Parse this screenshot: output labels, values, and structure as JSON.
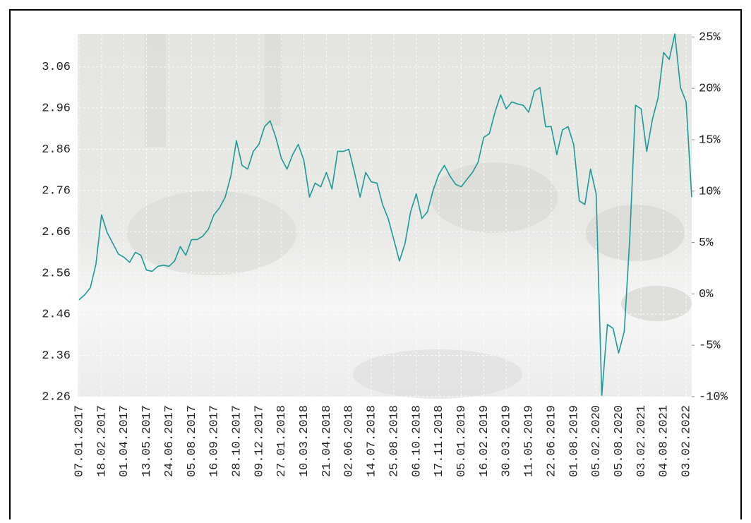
{
  "chart_data": {
    "type": "line",
    "categories": [
      "07.01.2017",
      null,
      null,
      null,
      "18.02.2017",
      null,
      null,
      null,
      "01.04.2017",
      null,
      null,
      null,
      "13.05.2017",
      null,
      null,
      null,
      "24.06.2017",
      null,
      null,
      null,
      "05.08.2017",
      null,
      null,
      null,
      "16.09.2017",
      null,
      null,
      null,
      "28.10.2017",
      null,
      null,
      null,
      "09.12.2017",
      null,
      null,
      null,
      "27.01.2018",
      null,
      null,
      null,
      "10.03.2018",
      null,
      null,
      null,
      "21.04.2018",
      null,
      null,
      null,
      "02.06.2018",
      null,
      null,
      null,
      "14.07.2018",
      null,
      null,
      null,
      "25.08.2018",
      null,
      null,
      null,
      "06.10.2018",
      null,
      null,
      null,
      "17.11.2018",
      null,
      null,
      null,
      "05.01.2019",
      null,
      null,
      null,
      "16.02.2019",
      null,
      null,
      null,
      "30.03.2019",
      null,
      null,
      null,
      "11.05.2019",
      null,
      null,
      null,
      "22.06.2019",
      null,
      null,
      null,
      "01.08.2019",
      null,
      null,
      null,
      "05.02.2020",
      null,
      null,
      null,
      "05.08.2020",
      null,
      null,
      null,
      "03.02.2021",
      null,
      null,
      null,
      "04.08.2021",
      null,
      null,
      null,
      "03.02.2022",
      null
    ],
    "values": [
      2.495,
      2.507,
      2.524,
      2.581,
      2.701,
      2.658,
      2.632,
      2.606,
      2.598,
      2.586,
      2.61,
      2.603,
      2.567,
      2.564,
      2.576,
      2.579,
      2.576,
      2.589,
      2.624,
      2.603,
      2.641,
      2.641,
      2.649,
      2.666,
      2.701,
      2.718,
      2.744,
      2.795,
      2.881,
      2.821,
      2.812,
      2.855,
      2.872,
      2.915,
      2.929,
      2.889,
      2.838,
      2.812,
      2.847,
      2.872,
      2.833,
      2.744,
      2.778,
      2.769,
      2.804,
      2.764,
      2.855,
      2.855,
      2.86,
      2.804,
      2.744,
      2.804,
      2.781,
      2.778,
      2.726,
      2.692,
      2.641,
      2.589,
      2.632,
      2.709,
      2.752,
      2.692,
      2.709,
      2.761,
      2.799,
      2.821,
      2.795,
      2.775,
      2.769,
      2.787,
      2.804,
      2.829,
      2.889,
      2.898,
      2.95,
      2.992,
      2.958,
      2.975,
      2.97,
      2.967,
      2.95,
      3.001,
      3.01,
      2.915,
      2.915,
      2.847,
      2.907,
      2.915,
      2.872,
      2.735,
      2.726,
      2.812,
      2.752,
      2.263,
      2.435,
      2.426,
      2.366,
      2.418,
      2.649,
      2.967,
      2.958,
      2.855,
      2.932,
      2.984,
      3.095,
      3.078,
      3.14,
      3.01,
      2.975,
      2.744
    ],
    "color": "#1a9a98",
    "ylim": [
      2.26,
      3.14
    ],
    "yticks": [
      2.26,
      2.36,
      2.46,
      2.56,
      2.66,
      2.76,
      2.86,
      2.96,
      3.06
    ],
    "y2lim": [
      -10,
      25.3
    ],
    "y2ticks": [
      {
        "value": -10,
        "label": "-10%"
      },
      {
        "value": -5,
        "label": "-5%"
      },
      {
        "value": 0,
        "label": "0%"
      },
      {
        "value": 5,
        "label": "5%"
      },
      {
        "value": 10,
        "label": "10%"
      },
      {
        "value": 15,
        "label": "15%"
      },
      {
        "value": 20,
        "label": "20%"
      },
      {
        "value": 25,
        "label": "25%"
      }
    ],
    "grid": true
  }
}
